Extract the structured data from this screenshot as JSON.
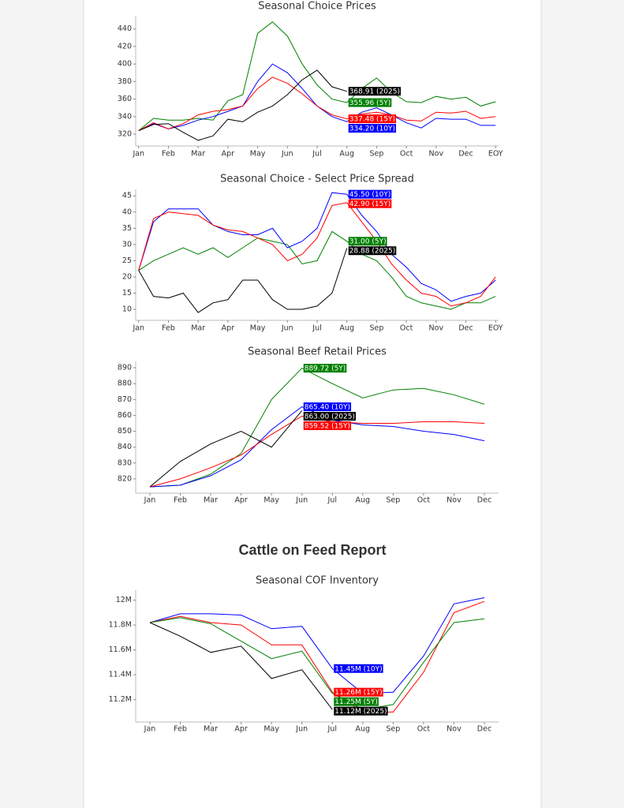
{
  "heading": "Cattle on Feed Report",
  "chart_data": [
    {
      "type": "line",
      "title": "Seasonal Choice Prices",
      "x": [
        0,
        0.5,
        1,
        1.5,
        2,
        2.5,
        3,
        3.5,
        4,
        4.5,
        5,
        5.5,
        6,
        6.5,
        7,
        7.5,
        8,
        8.5,
        9,
        9.5,
        10,
        10.5,
        11,
        11.5,
        12
      ],
      "xlim": [
        -0.1,
        12.1
      ],
      "xticks": [
        {
          "value": 0,
          "label": "Jan"
        },
        {
          "value": 1,
          "label": "Feb"
        },
        {
          "value": 2,
          "label": "Mar"
        },
        {
          "value": 3,
          "label": "Apr"
        },
        {
          "value": 4,
          "label": "May"
        },
        {
          "value": 5,
          "label": "Jun"
        },
        {
          "value": 6,
          "label": "Jul"
        },
        {
          "value": 7,
          "label": "Aug"
        },
        {
          "value": 8,
          "label": "Sep"
        },
        {
          "value": 9,
          "label": "Oct"
        },
        {
          "value": 10,
          "label": "Nov"
        },
        {
          "value": 11,
          "label": "Dec"
        },
        {
          "value": 12,
          "label": "EOY"
        }
      ],
      "ylim": [
        306.5,
        455
      ],
      "yticks": [
        320,
        340,
        360,
        380,
        400,
        420,
        440
      ],
      "series": [
        {
          "color": "#008000",
          "values": [
            324,
            338,
            336,
            336,
            338,
            336,
            358,
            365,
            435,
            448,
            432,
            400,
            376,
            360,
            355.96,
            372,
            384,
            368,
            357,
            356,
            363,
            360,
            362,
            352,
            357
          ],
          "value_labels": [
            null,
            null,
            null,
            null,
            null,
            null,
            null,
            null,
            null,
            null,
            null,
            null,
            null,
            null,
            "355.96 (5Y)",
            null,
            null,
            null,
            null,
            null,
            null,
            null,
            null,
            null,
            null
          ]
        },
        {
          "color": "#0000ff",
          "values": [
            324,
            332,
            326,
            330,
            336,
            340,
            346,
            352,
            380,
            400,
            390,
            372,
            352,
            340,
            334.2,
            345,
            350,
            342,
            333,
            327,
            338,
            337,
            337,
            330,
            330
          ],
          "value_labels": [
            null,
            null,
            null,
            null,
            null,
            null,
            null,
            null,
            null,
            null,
            null,
            null,
            null,
            null,
            "334.20 (10Y)",
            null,
            null,
            null,
            null,
            null,
            null,
            null,
            null,
            null,
            null
          ]
        },
        {
          "color": "#ff0000",
          "values": [
            324,
            333,
            326,
            332,
            342,
            346,
            348,
            352,
            372,
            385,
            378,
            366,
            352,
            342,
            337.48,
            343,
            345,
            342,
            336,
            335,
            345,
            344,
            346,
            338,
            340
          ],
          "value_labels": [
            null,
            null,
            null,
            null,
            null,
            null,
            null,
            null,
            null,
            null,
            null,
            null,
            null,
            null,
            "337.48 (15Y)",
            null,
            null,
            null,
            null,
            null,
            null,
            null,
            null,
            null,
            null
          ]
        },
        {
          "color": "#000000",
          "values": [
            324,
            331,
            332,
            322,
            313,
            318,
            337,
            334,
            345,
            352,
            365,
            382,
            393,
            374,
            368.91,
            null,
            null,
            null,
            null,
            null,
            null,
            null,
            null,
            null,
            null
          ],
          "value_labels": [
            null,
            null,
            null,
            null,
            null,
            null,
            null,
            null,
            null,
            null,
            null,
            null,
            null,
            null,
            "368.91 (2025)",
            null,
            null,
            null,
            null,
            null,
            null,
            null,
            null,
            null,
            null
          ]
        }
      ]
    },
    {
      "type": "line",
      "title": "Seasonal Choice - Select Price Spread",
      "x": [
        0,
        0.5,
        1,
        1.5,
        2,
        2.5,
        3,
        3.5,
        4,
        4.5,
        5,
        5.5,
        6,
        6.5,
        7,
        7.5,
        8,
        8.5,
        9,
        9.5,
        10,
        10.5,
        11,
        11.5,
        12
      ],
      "xlim": [
        -0.1,
        12.1
      ],
      "xticks": [
        {
          "value": 0,
          "label": "Jan"
        },
        {
          "value": 1,
          "label": "Feb"
        },
        {
          "value": 2,
          "label": "Mar"
        },
        {
          "value": 3,
          "label": "Apr"
        },
        {
          "value": 4,
          "label": "May"
        },
        {
          "value": 5,
          "label": "Jun"
        },
        {
          "value": 6,
          "label": "Jul"
        },
        {
          "value": 7,
          "label": "Aug"
        },
        {
          "value": 8,
          "label": "Sep"
        },
        {
          "value": 9,
          "label": "Oct"
        },
        {
          "value": 10,
          "label": "Nov"
        },
        {
          "value": 11,
          "label": "Dec"
        },
        {
          "value": 12,
          "label": "EOY"
        }
      ],
      "ylim": [
        6.6,
        47
      ],
      "yticks": [
        10,
        15,
        20,
        25,
        30,
        35,
        40,
        45
      ],
      "series": [
        {
          "color": "#008000",
          "values": [
            22,
            25,
            27,
            29,
            27,
            29,
            26,
            29,
            32,
            31,
            30,
            24,
            25,
            34,
            31,
            27,
            25,
            20,
            14,
            12,
            11,
            10,
            12,
            12,
            14
          ],
          "value_labels": [
            null,
            null,
            null,
            null,
            null,
            null,
            null,
            null,
            null,
            null,
            null,
            null,
            null,
            null,
            "31.00 (5Y)",
            null,
            null,
            null,
            null,
            null,
            null,
            null,
            null,
            null,
            null
          ]
        },
        {
          "color": "#0000ff",
          "values": [
            22,
            37,
            41,
            41,
            41,
            36,
            34,
            33,
            33,
            35,
            29,
            31,
            35,
            46,
            45.5,
            39,
            34,
            27,
            23,
            18,
            16,
            12.5,
            14,
            15,
            19
          ],
          "value_labels": [
            null,
            null,
            null,
            null,
            null,
            null,
            null,
            null,
            null,
            null,
            null,
            null,
            null,
            null,
            "45.50 (10Y)",
            null,
            null,
            null,
            null,
            null,
            null,
            null,
            null,
            null,
            null
          ]
        },
        {
          "color": "#ff0000",
          "values": [
            22,
            38,
            40,
            39.5,
            39,
            36,
            34.5,
            34,
            32,
            30,
            25,
            27,
            32,
            42,
            42.9,
            37,
            31,
            24,
            19,
            15,
            14,
            11,
            12,
            14,
            20
          ],
          "value_labels": [
            null,
            null,
            null,
            null,
            null,
            null,
            null,
            null,
            null,
            null,
            null,
            null,
            null,
            null,
            "42.90 (15Y)",
            null,
            null,
            null,
            null,
            null,
            null,
            null,
            null,
            null,
            null
          ]
        },
        {
          "color": "#000000",
          "values": [
            22,
            14,
            13.5,
            15,
            9,
            12,
            13,
            19,
            19,
            13,
            10,
            10,
            11,
            15,
            28.88,
            null,
            null,
            null,
            null,
            null,
            null,
            null,
            null,
            null,
            null
          ],
          "value_labels": [
            null,
            null,
            null,
            null,
            null,
            null,
            null,
            null,
            null,
            null,
            null,
            null,
            null,
            null,
            "28.88 (2025)",
            null,
            null,
            null,
            null,
            null,
            null,
            null,
            null,
            null,
            null
          ]
        }
      ]
    },
    {
      "type": "line",
      "title": "Seasonal Beef Retail Prices",
      "categories": [
        "Jan",
        "Feb",
        "Mar",
        "Apr",
        "May",
        "Jun",
        "Jul",
        "Aug",
        "Sep",
        "Oct",
        "Nov",
        "Dec"
      ],
      "ylim": [
        811,
        894
      ],
      "yticks": [
        820,
        830,
        840,
        850,
        860,
        870,
        880,
        890
      ],
      "series": [
        {
          "color": "#008000",
          "values": [
            815,
            816,
            823,
            836,
            870,
            889.72,
            880,
            871,
            876,
            877,
            873,
            867
          ],
          "value_labels": [
            null,
            null,
            null,
            null,
            null,
            "889.72 (5Y)",
            null,
            null,
            null,
            null,
            null,
            null
          ]
        },
        {
          "color": "#0000ff",
          "values": [
            815,
            816,
            822,
            832,
            851,
            865.4,
            857,
            854,
            853,
            850,
            848,
            844
          ],
          "value_labels": [
            null,
            null,
            null,
            null,
            null,
            "865.40 (10Y)",
            null,
            null,
            null,
            null,
            null,
            null
          ]
        },
        {
          "color": "#ff0000",
          "values": [
            815,
            820,
            827,
            835,
            848,
            859.52,
            856,
            855,
            855,
            856,
            856,
            855
          ],
          "value_labels": [
            null,
            null,
            null,
            null,
            null,
            "859.52 (15Y)",
            null,
            null,
            null,
            null,
            null,
            null
          ]
        },
        {
          "color": "#000000",
          "values": [
            815,
            831,
            842,
            850,
            840,
            863,
            null,
            null,
            null,
            null,
            null,
            null
          ],
          "value_labels": [
            null,
            null,
            null,
            null,
            null,
            "863.00 (2025)",
            null,
            null,
            null,
            null,
            null,
            null
          ]
        }
      ]
    },
    {
      "type": "line",
      "title": "Seasonal COF Inventory",
      "categories": [
        "Jan",
        "Feb",
        "Mar",
        "Apr",
        "May",
        "Jun",
        "Jul",
        "Aug",
        "Sep",
        "Oct",
        "Nov",
        "Dec"
      ],
      "ylim": [
        11020000,
        12080000
      ],
      "yticks": [
        {
          "value": 11200000,
          "label": "11.2M"
        },
        {
          "value": 11400000,
          "label": "11.4M"
        },
        {
          "value": 11600000,
          "label": "11.6M"
        },
        {
          "value": 11800000,
          "label": "11.8M"
        },
        {
          "value": 12000000,
          "label": "12M"
        }
      ],
      "series": [
        {
          "color": "#0000ff",
          "values": [
            11820000,
            11890000,
            11890000,
            11880000,
            11770000,
            11790000,
            11450000,
            11250000,
            11260000,
            11550000,
            11970000,
            12020000
          ],
          "value_labels": [
            null,
            null,
            null,
            null,
            null,
            null,
            "11.45M (10Y)",
            null,
            null,
            null,
            null,
            null
          ]
        },
        {
          "color": "#ff0000",
          "values": [
            11820000,
            11870000,
            11820000,
            11800000,
            11640000,
            11640000,
            11260000,
            11100000,
            11100000,
            11420000,
            11900000,
            11990000
          ],
          "value_labels": [
            null,
            null,
            null,
            null,
            null,
            null,
            "11.26M (15Y)",
            null,
            null,
            null,
            null,
            null
          ]
        },
        {
          "color": "#008000",
          "values": [
            11820000,
            11860000,
            11810000,
            11670000,
            11530000,
            11590000,
            11250000,
            11120000,
            11160000,
            11500000,
            11820000,
            11850000
          ],
          "value_labels": [
            null,
            null,
            null,
            null,
            null,
            null,
            "11.25M (5Y)",
            null,
            null,
            null,
            null,
            null
          ]
        },
        {
          "color": "#000000",
          "values": [
            11820000,
            11710000,
            11580000,
            11630000,
            11370000,
            11440000,
            11120000,
            null,
            null,
            null,
            null,
            null
          ],
          "value_labels": [
            null,
            null,
            null,
            null,
            null,
            null,
            "11.12M (2025)",
            null,
            null,
            null,
            null,
            null
          ]
        }
      ]
    }
  ]
}
